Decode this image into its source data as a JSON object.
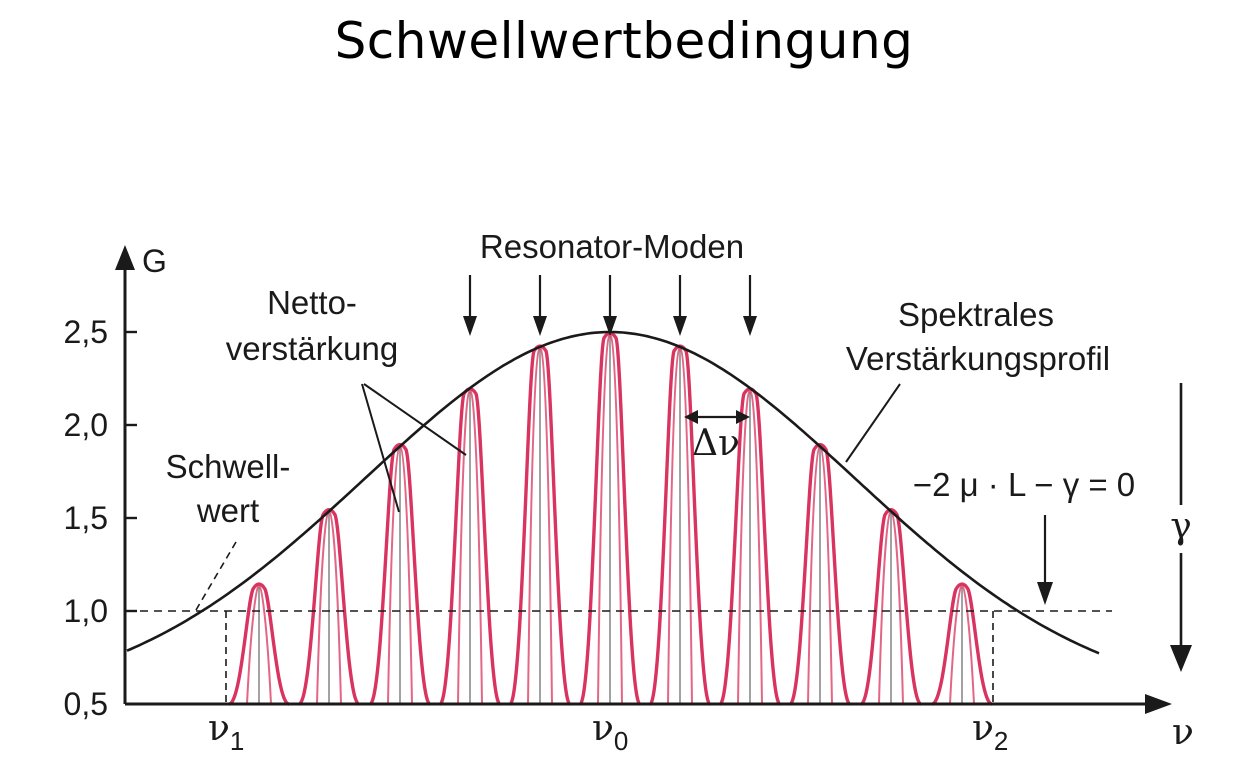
{
  "slide": {
    "title": "Schwellwertbedingung"
  },
  "diagram": {
    "y_axis_label": "G",
    "x_axis_label": "ν",
    "y_ticks": [
      "2,5",
      "2,0",
      "1,5",
      "1,0",
      "0,5"
    ],
    "y_tick_values": [
      2.5,
      2.0,
      1.5,
      1.0,
      0.5
    ],
    "x_markers": [
      {
        "main": "ν",
        "sub": "1"
      },
      {
        "main": "ν",
        "sub": "0"
      },
      {
        "main": "ν",
        "sub": "2"
      }
    ],
    "labels": {
      "resonator_modes": "Resonator-Moden",
      "net_gain_line1": "Netto-",
      "net_gain_line2": "verstärkung",
      "spectral_line1": "Spektrales",
      "spectral_line2": "Verstärkungsprofil",
      "threshold_line1": "Schwell-",
      "threshold_line2": "wert",
      "mode_spacing": "Δν",
      "condition": "−2 μ · L − γ = 0",
      "gamma": "γ"
    },
    "threshold_gain": 1.0,
    "profile_peak_gain": 2.5,
    "mode_peak_gains": [
      1.15,
      1.55,
      1.9,
      2.2,
      2.43,
      2.5,
      2.43,
      2.2,
      1.9,
      1.55,
      1.15
    ],
    "colors": {
      "modes": "#d8345f",
      "profile": "#1a1a1a",
      "threshold": "#1a1a1a"
    }
  }
}
